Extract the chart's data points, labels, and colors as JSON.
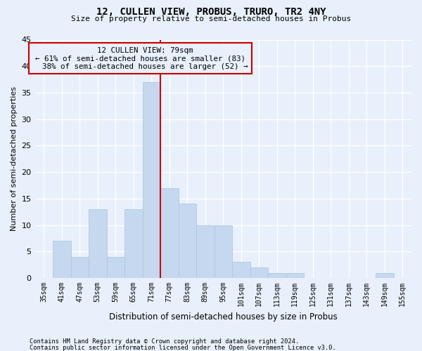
{
  "title": "12, CULLEN VIEW, PROBUS, TRURO, TR2 4NY",
  "subtitle": "Size of property relative to semi-detached houses in Probus",
  "xlabel": "Distribution of semi-detached houses by size in Probus",
  "ylabel": "Number of semi-detached properties",
  "categories": [
    "35sqm",
    "41sqm",
    "47sqm",
    "53sqm",
    "59sqm",
    "65sqm",
    "71sqm",
    "77sqm",
    "83sqm",
    "89sqm",
    "95sqm",
    "101sqm",
    "107sqm",
    "113sqm",
    "119sqm",
    "125sqm",
    "131sqm",
    "137sqm",
    "143sqm",
    "149sqm",
    "155sqm"
  ],
  "values": [
    0,
    7,
    4,
    13,
    4,
    13,
    37,
    17,
    14,
    10,
    10,
    3,
    2,
    1,
    1,
    0,
    0,
    0,
    0,
    1,
    0
  ],
  "bar_color": "#c5d8f0",
  "bar_edgecolor": "#a8c4e0",
  "bar_width": 1.0,
  "ylim": [
    0,
    45
  ],
  "yticks": [
    0,
    5,
    10,
    15,
    20,
    25,
    30,
    35,
    40,
    45
  ],
  "property_label": "12 CULLEN VIEW: 79sqm",
  "pct_smaller": 61,
  "n_smaller": 83,
  "pct_larger": 38,
  "n_larger": 52,
  "vline_color": "#cc0000",
  "annotation_box_color": "#cc0000",
  "bg_color": "#e8f0fb",
  "grid_color": "#ffffff",
  "footer_line1": "Contains HM Land Registry data © Crown copyright and database right 2024.",
  "footer_line2": "Contains public sector information licensed under the Open Government Licence v3.0."
}
